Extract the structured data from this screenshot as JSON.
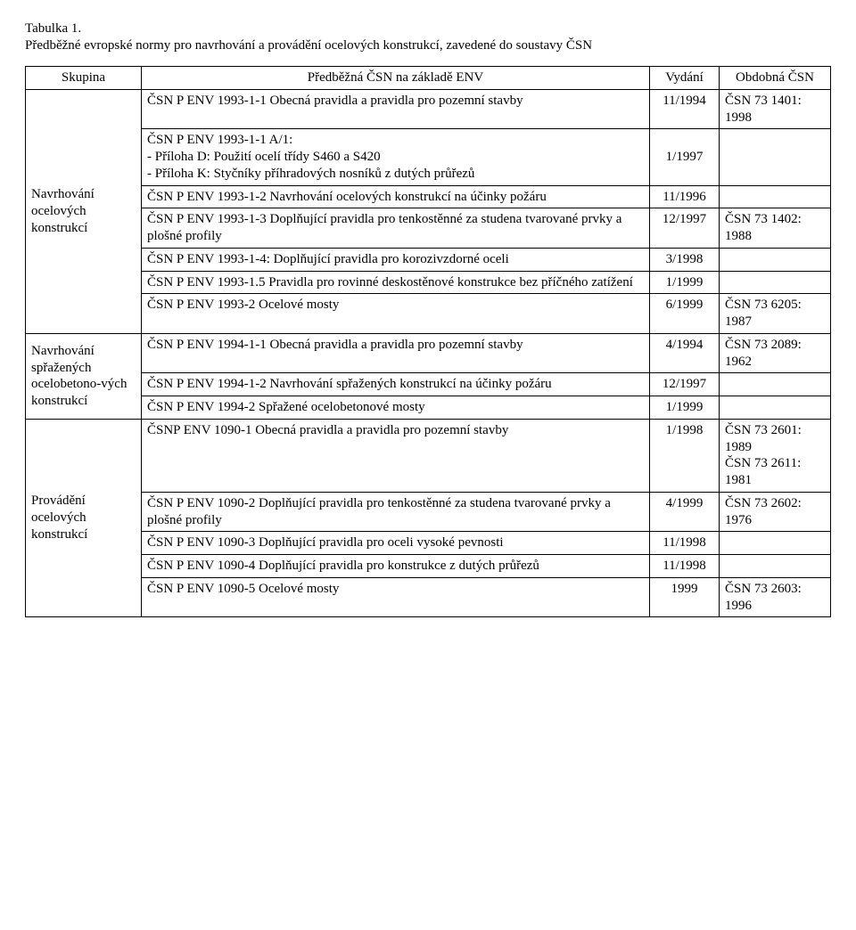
{
  "caption": "Tabulka 1.",
  "intro": "Předběžné evropské normy pro navrhování a provádění ocelových konstrukcí, zavedené do soustavy ČSN",
  "headers": {
    "group": "Skupina",
    "standard": "Předběžná ČSN na základě ENV",
    "issued": "Vydání",
    "similar": "Obdobná ČSN"
  },
  "groups": [
    {
      "label": "Navrhování ocelových konstrukcí",
      "rowspan": 7
    },
    {
      "label": "Navrhování spřažených ocelobetono-vých konstrukcí",
      "rowspan": 3
    },
    {
      "label": "Provádění ocelových konstrukcí",
      "rowspan": 5
    }
  ],
  "rows": [
    {
      "std": "ČSN P ENV 1993-1-1 Obecná pravidla a pravidla pro pozemní stavby",
      "issued": "11/1994",
      "similar": "ČSN 73 1401: 1998"
    },
    {
      "std": "ČSN P ENV 1993-1-1 A/1:\n- Příloha D: Použití ocelí třídy S460 a S420\n- Příloha K: Styčníky příhradových nosníků z dutých průřezů",
      "issued": "1/1997",
      "similar": ""
    },
    {
      "std": "ČSN P ENV 1993-1-2 Navrhování ocelových konstrukcí na účinky požáru",
      "issued": "11/1996",
      "similar": ""
    },
    {
      "std": "ČSN P ENV 1993-1-3 Doplňující pravidla pro tenkostěnné za studena tvarované prvky a plošné profily",
      "issued": "12/1997",
      "similar": "ČSN 73 1402: 1988"
    },
    {
      "std": "ČSN P ENV 1993-1-4: Doplňující pravidla pro korozivzdorné oceli",
      "issued": "3/1998",
      "similar": ""
    },
    {
      "std": "ČSN P ENV 1993-1.5 Pravidla pro rovinné deskostěnové konstrukce bez příčného zatížení",
      "issued": "1/1999",
      "similar": ""
    },
    {
      "std": "ČSN P ENV 1993-2 Ocelové mosty",
      "issued": "6/1999",
      "similar": "ČSN 73 6205: 1987"
    },
    {
      "std": "ČSN P ENV 1994-1-1 Obecná pravidla a pravidla pro pozemní stavby",
      "issued": "4/1994",
      "similar": "ČSN 73 2089: 1962"
    },
    {
      "std": "ČSN P ENV 1994-1-2 Navrhování spřažených konstrukcí na účinky požáru",
      "issued": "12/1997",
      "similar": ""
    },
    {
      "std": "ČSN P ENV 1994-2 Spřažené ocelobetonové mosty",
      "issued": "1/1999",
      "similar": ""
    },
    {
      "std": "ČSNP ENV 1090-1 Obecná pravidla a pravidla pro pozemní stavby",
      "issued": "1/1998",
      "similar": "ČSN 73 2601: 1989\nČSN 73 2611: 1981"
    },
    {
      "std": "ČSN P ENV 1090-2 Doplňující pravidla pro tenkostěnné za studena tvarované prvky a plošné profily",
      "issued": "4/1999",
      "similar": "ČSN 73 2602: 1976"
    },
    {
      "std": "ČSN P ENV 1090-3 Doplňující pravidla pro oceli vysoké pevnosti",
      "issued": "11/1998",
      "similar": ""
    },
    {
      "std": "ČSN P ENV 1090-4 Doplňující pravidla pro konstrukce z dutých průřezů",
      "issued": "11/1998",
      "similar": ""
    },
    {
      "std": "ČSN P ENV 1090-5 Ocelové mosty",
      "issued": "1999",
      "similar": "ČSN 73 2603: 1996"
    }
  ],
  "group_start_rows": [
    0,
    7,
    10
  ],
  "issued_vmid_rows": [
    1
  ]
}
